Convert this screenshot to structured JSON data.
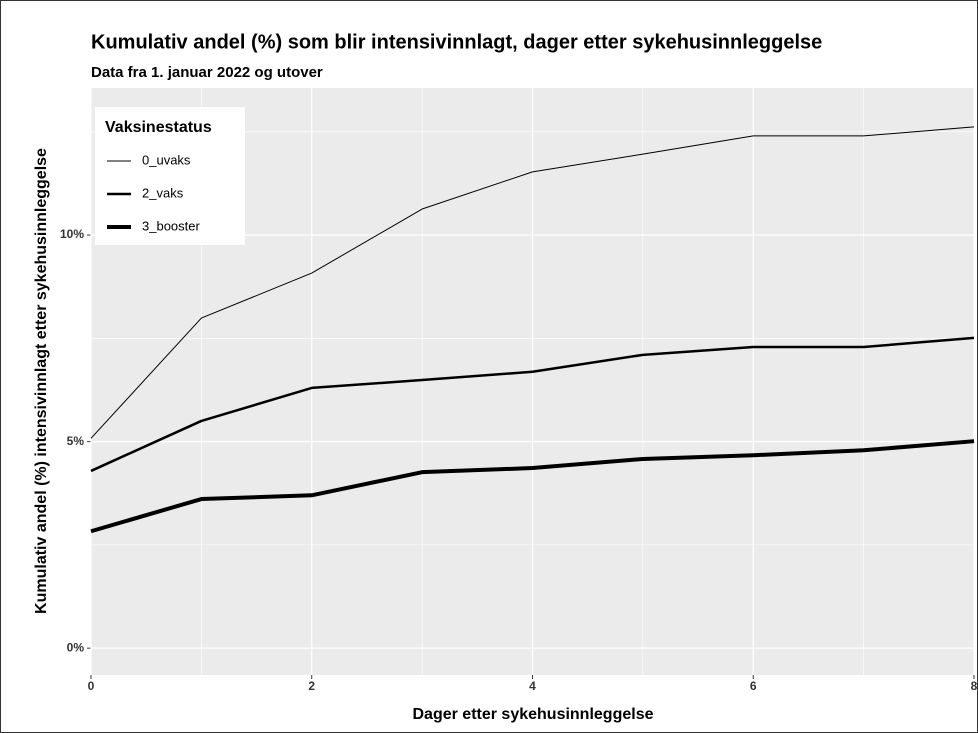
{
  "chart_data": {
    "type": "line",
    "title": "Kumulativ andel (%) som blir intensivinnlagt, dager etter sykehusinnleggelse",
    "subtitle": "Data fra 1. januar 2022 og utover",
    "x_label": "Dager etter sykehusinnleggelse",
    "y_label": "Kumulativ andel (%) intensivinnlagt etter sykehusinnleggelse",
    "x": [
      0,
      1,
      2,
      3,
      4,
      5,
      6,
      7,
      8
    ],
    "series": [
      {
        "name": "0_uvaks",
        "color": "#000000",
        "width": 1,
        "values": [
          5.08,
          7.99,
          9.08,
          10.63,
          11.53,
          11.96,
          12.4,
          12.4,
          12.62
        ]
      },
      {
        "name": "2_vaks",
        "color": "#000000",
        "width": 2.5,
        "values": [
          4.29,
          5.5,
          6.3,
          6.49,
          6.69,
          7.1,
          7.29,
          7.29,
          7.51
        ]
      },
      {
        "name": "3_booster",
        "color": "#000000",
        "width": 4,
        "values": [
          2.83,
          3.61,
          3.7,
          4.26,
          4.36,
          4.58,
          4.67,
          4.79,
          5.01
        ]
      }
    ],
    "legend_title": "Vaksinestatus",
    "legend_position": "top-left",
    "xlim": [
      0,
      8
    ],
    "xticks": [
      0,
      2,
      4,
      6,
      8
    ],
    "ylim": [
      -0.65,
      13.56
    ],
    "yticks": [
      {
        "value": 0,
        "label": "0%"
      },
      {
        "value": 5,
        "label": "5%"
      },
      {
        "value": 10,
        "label": "10%"
      }
    ],
    "grid": true
  }
}
